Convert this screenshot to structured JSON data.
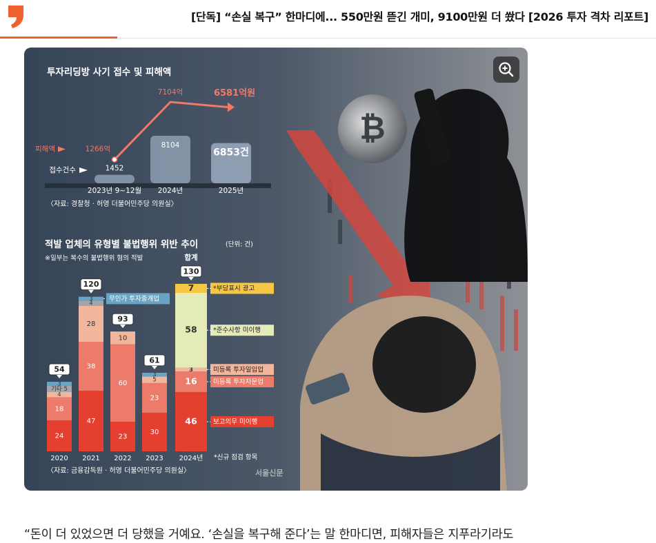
{
  "header": {
    "title": "[단독] “손실 복구” 한마디에... 550만원 뜯긴 개미, 9100만원 더 쐈다 [2026 투자 격차 리포트]"
  },
  "chart_data": [
    {
      "type": "bar",
      "title": "투자리딩방 사기 접수 및 피해액",
      "categories": [
        "2023년 9~12월",
        "2024년",
        "2025년"
      ],
      "series": [
        {
          "name": "접수건수",
          "color": "#8f9db3",
          "values": [
            1452,
            8104,
            6853
          ],
          "value_labels": [
            "1452",
            "8104",
            "6853건"
          ]
        },
        {
          "name": "피해액",
          "type": "line",
          "color": "#f07a67",
          "values": [
            1266,
            7104,
            6581
          ],
          "value_labels": [
            "1266억",
            "7104억",
            "6581억원"
          ]
        }
      ],
      "source": "〈자료: 경찰청 · 허영 더불어민주당 의원실〉"
    },
    {
      "type": "stacked_bar",
      "title": "적발 업체의 유형별 불법행위 위반 추이",
      "unit": "(단위: 건)",
      "note": "※일부는 복수의 불법행위 혐의 적발",
      "categories": [
        "2020",
        "2021",
        "2022",
        "2023",
        "2024년"
      ],
      "series": [
        {
          "name": "보고의무 미이행",
          "color": "#e5402f",
          "values": [
            24,
            47,
            23,
            30,
            46
          ]
        },
        {
          "name": "미등록 투자자문업",
          "color": "#ec7b6b",
          "values": [
            18,
            38,
            60,
            23,
            16
          ]
        },
        {
          "name": "미등록 투자일임업",
          "color": "#f2b69c",
          "values": [
            4,
            28,
            10,
            5,
            3
          ]
        },
        {
          "name": "기타",
          "color": "#a3a7ad",
          "values": [
            5,
            4,
            null,
            null,
            null
          ],
          "value_labels": [
            "기타 5",
            "4",
            null,
            null,
            null
          ]
        },
        {
          "name": "무인가 투자중개업",
          "color": "#6aa4c4",
          "values": [
            3,
            3,
            null,
            3,
            null
          ]
        },
        {
          "name": "*준수사항 미이행",
          "color": "#e4ebb9",
          "values": [
            null,
            null,
            null,
            null,
            58
          ]
        },
        {
          "name": "*부당표시 광고",
          "color": "#f6c744",
          "values": [
            null,
            null,
            null,
            null,
            7
          ]
        }
      ],
      "totals": [
        54,
        120,
        93,
        61,
        130
      ],
      "total_label": "합계",
      "footnote": "*신규 점검 항목",
      "source": "〈자료: 금융감독원 · 허영 더불어민주당 의원실〉",
      "watermark": "서울신문"
    }
  ],
  "body": {
    "paragraph": "“돈이 더 있었으면 더 당했을 거예요. ‘손실을 복구해 준다’는 말 한마디면, 피해자들은 지푸라기라도"
  }
}
